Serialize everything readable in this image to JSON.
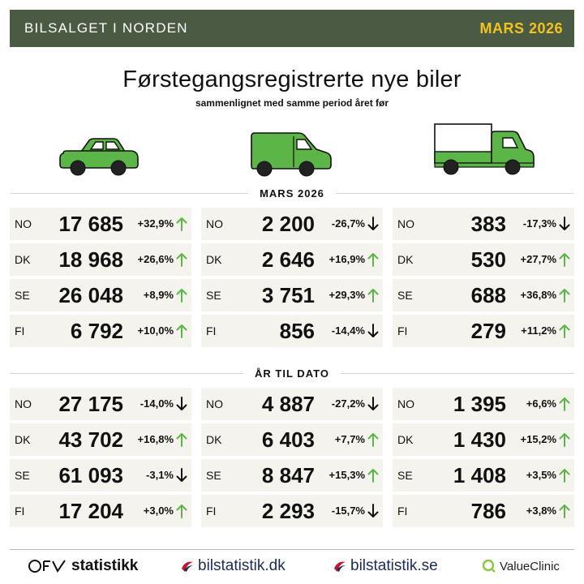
{
  "header": {
    "title": "BILSALGET I NORDEN",
    "date": "MARS 2026"
  },
  "title": "Førstegangsregistrerte nye biler",
  "subtitle": "sammenlignet med samme period året før",
  "vehicle_icons": [
    "car-icon",
    "van-icon",
    "truck-icon"
  ],
  "colors": {
    "header_bg": "#4a5a43",
    "accent": "#f0c419",
    "vehicle": "#5cb547",
    "up": "#5cb547",
    "down": "#111111",
    "row_bg": "#f4f3ed"
  },
  "sections": [
    {
      "label": "MARS 2026",
      "columns": [
        [
          {
            "country": "NO",
            "value": "17 685",
            "change": "+32,9%",
            "dir": "up"
          },
          {
            "country": "DK",
            "value": "18 968",
            "change": "+26,6%",
            "dir": "up"
          },
          {
            "country": "SE",
            "value": "26 048",
            "change": "+8,9%",
            "dir": "up"
          },
          {
            "country": "FI",
            "value": "6 792",
            "change": "+10,0%",
            "dir": "up"
          }
        ],
        [
          {
            "country": "NO",
            "value": "2 200",
            "change": "-26,7%",
            "dir": "down"
          },
          {
            "country": "DK",
            "value": "2 646",
            "change": "+16,9%",
            "dir": "up"
          },
          {
            "country": "SE",
            "value": "3 751",
            "change": "+29,3%",
            "dir": "up"
          },
          {
            "country": "FI",
            "value": "856",
            "change": "-14,4%",
            "dir": "down"
          }
        ],
        [
          {
            "country": "NO",
            "value": "383",
            "change": "-17,3%",
            "dir": "down"
          },
          {
            "country": "DK",
            "value": "530",
            "change": "+27,7%",
            "dir": "up"
          },
          {
            "country": "SE",
            "value": "688",
            "change": "+36,8%",
            "dir": "up"
          },
          {
            "country": "FI",
            "value": "279",
            "change": "+11,2%",
            "dir": "up"
          }
        ]
      ]
    },
    {
      "label": "ÅR TIL DATO",
      "columns": [
        [
          {
            "country": "NO",
            "value": "27 175",
            "change": "-14,0%",
            "dir": "down"
          },
          {
            "country": "DK",
            "value": "43 702",
            "change": "+16,8%",
            "dir": "up"
          },
          {
            "country": "SE",
            "value": "61 093",
            "change": "-3,1%",
            "dir": "down"
          },
          {
            "country": "FI",
            "value": "17 204",
            "change": "+3,0%",
            "dir": "up"
          }
        ],
        [
          {
            "country": "NO",
            "value": "4 887",
            "change": "-27,2%",
            "dir": "down"
          },
          {
            "country": "DK",
            "value": "6 403",
            "change": "+7,7%",
            "dir": "up"
          },
          {
            "country": "SE",
            "value": "8 847",
            "change": "+15,3%",
            "dir": "up"
          },
          {
            "country": "FI",
            "value": "2 293",
            "change": "-15,7%",
            "dir": "down"
          }
        ],
        [
          {
            "country": "NO",
            "value": "1 395",
            "change": "+6,6%",
            "dir": "up"
          },
          {
            "country": "DK",
            "value": "1 430",
            "change": "+15,2%",
            "dir": "up"
          },
          {
            "country": "SE",
            "value": "1 408",
            "change": "+3,5%",
            "dir": "up"
          },
          {
            "country": "FI",
            "value": "786",
            "change": "+3,8%",
            "dir": "up"
          }
        ]
      ]
    }
  ],
  "footer": {
    "ofv": "statistikk",
    "dk": "bilstatistik.dk",
    "se": "bilstatistik.se",
    "vc": "ValueClinic"
  }
}
